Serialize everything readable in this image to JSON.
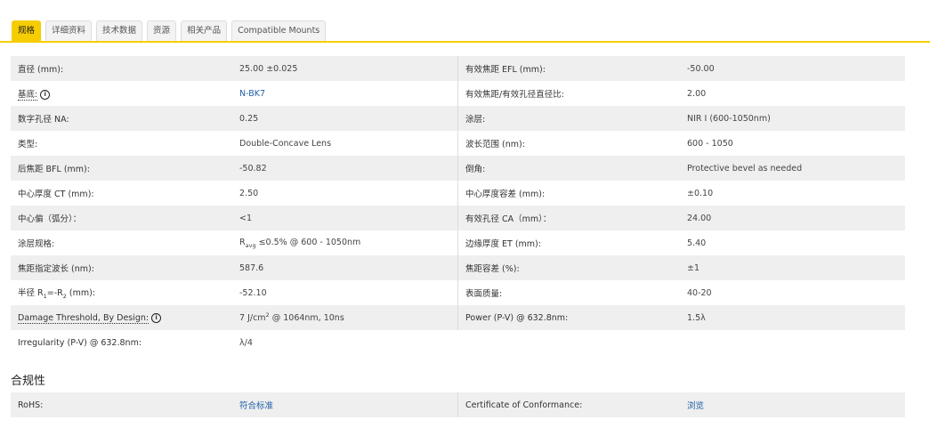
{
  "tabs": [
    {
      "label": "规格",
      "active": true
    },
    {
      "label": "详细资料"
    },
    {
      "label": "技术数据"
    },
    {
      "label": "资源"
    },
    {
      "label": "相关产品"
    },
    {
      "label": "Compatible Mounts"
    }
  ],
  "accent": "#f6cd00",
  "specs": {
    "left": [
      {
        "label": [
          {
            "t": "直径 (mm):"
          }
        ],
        "value": [
          {
            "t": "25.00 ±0.025"
          }
        ]
      },
      {
        "label": [
          {
            "t": "基底:"
          }
        ],
        "info": true,
        "dotted": true,
        "value": [
          {
            "t": "N-BK7"
          }
        ],
        "link": true
      },
      {
        "label": [
          {
            "t": "数字孔径 NA:"
          }
        ],
        "value": [
          {
            "t": "0.25"
          }
        ]
      },
      {
        "label": [
          {
            "t": "类型:"
          }
        ],
        "value": [
          {
            "t": "Double-Concave Lens"
          }
        ]
      },
      {
        "label": [
          {
            "t": "后焦距 BFL (mm):"
          }
        ],
        "value": [
          {
            "t": "-50.82"
          }
        ]
      },
      {
        "label": [
          {
            "t": "中心厚度 CT (mm):"
          }
        ],
        "value": [
          {
            "t": "2.50"
          }
        ]
      },
      {
        "label": [
          {
            "t": "中心偏（弧分）："
          }
        ],
        "value": [
          {
            "t": "<1"
          }
        ]
      },
      {
        "label": [
          {
            "t": "涂层规格:"
          }
        ],
        "value": [
          {
            "t": "R"
          },
          {
            "t": "avg",
            "sub": true
          },
          {
            "t": " ≤0.5% @ 600 - 1050nm"
          }
        ]
      },
      {
        "label": [
          {
            "t": "焦距指定波长 (nm):"
          }
        ],
        "value": [
          {
            "t": "587.6"
          }
        ]
      },
      {
        "label": [
          {
            "t": "半径 R"
          },
          {
            "t": "1",
            "sub": true
          },
          {
            "t": "=-R"
          },
          {
            "t": "2",
            "sub": true
          },
          {
            "t": " (mm):"
          }
        ],
        "value": [
          {
            "t": "-52.10"
          }
        ]
      },
      {
        "label": [
          {
            "t": "Damage Threshold, By Design:"
          }
        ],
        "info": true,
        "dotted": true,
        "value": [
          {
            "t": "7 J/cm"
          },
          {
            "t": "2",
            "sup": true
          },
          {
            "t": " @ 1064nm, 10ns"
          }
        ]
      },
      {
        "label": [
          {
            "t": "Irregularity (P-V) @ 632.8nm:"
          }
        ],
        "value": [
          {
            "t": "λ/4"
          }
        ]
      }
    ],
    "right": [
      {
        "label": [
          {
            "t": "有效焦距 EFL (mm):"
          }
        ],
        "value": [
          {
            "t": "-50.00"
          }
        ]
      },
      {
        "label": [
          {
            "t": "有效焦距/有效孔径直径比:"
          }
        ],
        "value": [
          {
            "t": "2.00"
          }
        ]
      },
      {
        "label": [
          {
            "t": "涂层:"
          }
        ],
        "value": [
          {
            "t": "NIR I (600-1050nm)"
          }
        ]
      },
      {
        "label": [
          {
            "t": "波长范围 (nm):"
          }
        ],
        "value": [
          {
            "t": "600 - 1050"
          }
        ]
      },
      {
        "label": [
          {
            "t": "倒角:"
          }
        ],
        "value": [
          {
            "t": "Protective bevel as needed"
          }
        ]
      },
      {
        "label": [
          {
            "t": "中心厚度容差 (mm):"
          }
        ],
        "value": [
          {
            "t": "±0.10"
          }
        ]
      },
      {
        "label": [
          {
            "t": "有效孔径 CA（mm）："
          }
        ],
        "value": [
          {
            "t": "24.00"
          }
        ]
      },
      {
        "label": [
          {
            "t": "边缘厚度 ET (mm):"
          }
        ],
        "value": [
          {
            "t": "5.40"
          }
        ]
      },
      {
        "label": [
          {
            "t": "焦距容差 (%):"
          }
        ],
        "value": [
          {
            "t": "±1"
          }
        ]
      },
      {
        "label": [
          {
            "t": "表面质量:"
          }
        ],
        "value": [
          {
            "t": "40-20"
          }
        ]
      },
      {
        "label": [
          {
            "t": "Power (P-V) @ 632.8nm:"
          }
        ],
        "value": [
          {
            "t": "1.5λ"
          }
        ]
      }
    ]
  },
  "compliance": {
    "title": "合规性",
    "left": {
      "label": [
        {
          "t": "RoHS:"
        }
      ],
      "value": [
        {
          "t": "符合标准"
        }
      ],
      "link": true
    },
    "right": {
      "label": [
        {
          "t": "Certificate of Conformance:"
        }
      ],
      "value": [
        {
          "t": "浏览"
        }
      ],
      "link": true
    }
  }
}
